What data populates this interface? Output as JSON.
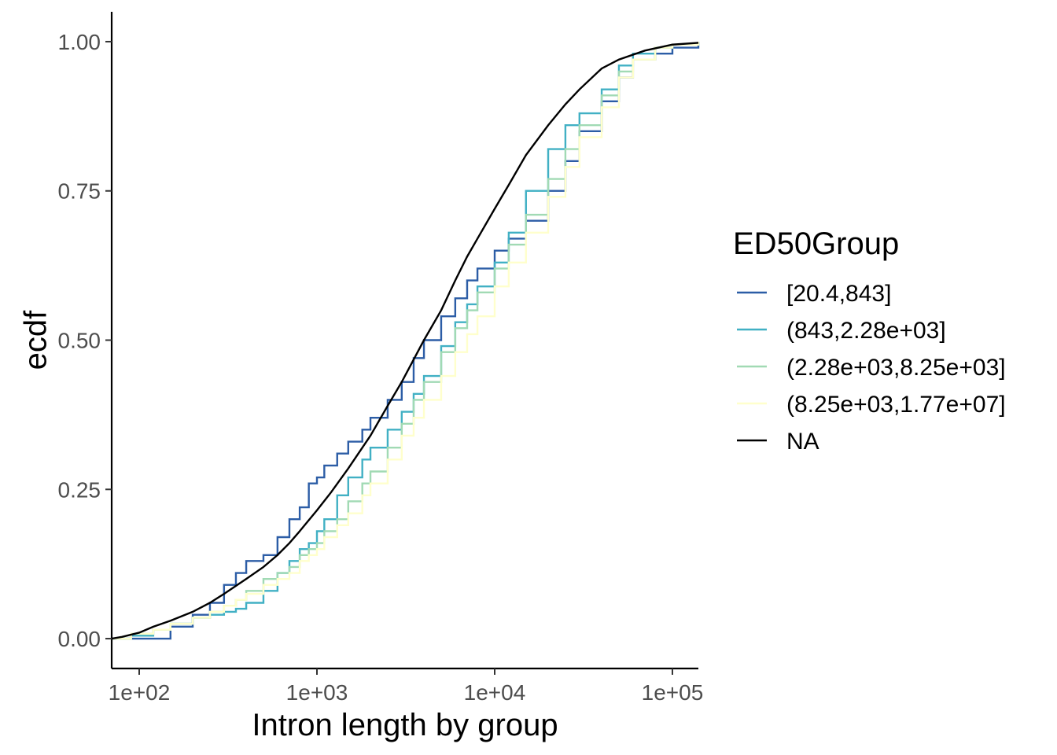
{
  "chart_data": {
    "type": "line",
    "xlabel": "Intron length by group",
    "ylabel": "ecdf",
    "x_scale": "log10",
    "xlim": [
      70,
      140000
    ],
    "ylim": [
      -0.05,
      1.05
    ],
    "x_ticks": [
      {
        "value": 100,
        "label": "1e+02"
      },
      {
        "value": 1000,
        "label": "1e+03"
      },
      {
        "value": 10000,
        "label": "1e+04"
      },
      {
        "value": 100000,
        "label": "1e+05"
      }
    ],
    "y_ticks": [
      {
        "value": 0.0,
        "label": "0.00"
      },
      {
        "value": 0.25,
        "label": "0.25"
      },
      {
        "value": 0.5,
        "label": "0.50"
      },
      {
        "value": 0.75,
        "label": "0.75"
      },
      {
        "value": 1.0,
        "label": "1.00"
      }
    ],
    "grid": false,
    "legend": {
      "title": "ED50Group",
      "position": "right"
    },
    "series": [
      {
        "name": "[20.4,843]",
        "color": "#2c5da6",
        "x": [
          70,
          90,
          120,
          150,
          200,
          250,
          300,
          350,
          400,
          500,
          600,
          700,
          800,
          900,
          1000,
          1100,
          1300,
          1500,
          1800,
          2000,
          2500,
          3000,
          3500,
          4000,
          5000,
          6000,
          7000,
          8000,
          10000,
          12000,
          15000,
          20000,
          25000,
          30000,
          40000,
          50000,
          60000,
          80000,
          100000,
          140000
        ],
        "y": [
          0.0,
          0.0,
          0.0,
          0.02,
          0.04,
          0.06,
          0.09,
          0.11,
          0.13,
          0.14,
          0.17,
          0.2,
          0.22,
          0.26,
          0.27,
          0.29,
          0.31,
          0.33,
          0.35,
          0.37,
          0.4,
          0.43,
          0.47,
          0.5,
          0.54,
          0.57,
          0.6,
          0.62,
          0.65,
          0.67,
          0.7,
          0.75,
          0.8,
          0.85,
          0.9,
          0.94,
          0.97,
          0.98,
          0.99,
          1.0
        ]
      },
      {
        "name": "(843,2.28e+03]",
        "color": "#41b0c4",
        "x": [
          70,
          90,
          120,
          150,
          200,
          250,
          300,
          350,
          400,
          500,
          600,
          700,
          800,
          900,
          1000,
          1100,
          1300,
          1500,
          1800,
          2000,
          2500,
          3000,
          3500,
          4000,
          5000,
          6000,
          7000,
          8000,
          10000,
          12000,
          15000,
          20000,
          25000,
          30000,
          40000,
          50000,
          60000,
          80000,
          100000,
          140000
        ],
        "y": [
          0.0,
          0.005,
          0.015,
          0.025,
          0.035,
          0.04,
          0.045,
          0.05,
          0.06,
          0.08,
          0.11,
          0.13,
          0.15,
          0.16,
          0.18,
          0.2,
          0.24,
          0.27,
          0.3,
          0.32,
          0.35,
          0.38,
          0.41,
          0.44,
          0.49,
          0.53,
          0.56,
          0.59,
          0.63,
          0.68,
          0.75,
          0.82,
          0.86,
          0.88,
          0.92,
          0.96,
          0.98,
          0.99,
          0.995,
          1.0
        ]
      },
      {
        "name": "(2.28e+03,8.25e+03]",
        "color": "#a1dab4",
        "x": [
          70,
          90,
          120,
          150,
          200,
          250,
          300,
          350,
          400,
          500,
          600,
          700,
          800,
          900,
          1000,
          1100,
          1300,
          1500,
          1800,
          2000,
          2500,
          3000,
          3500,
          4000,
          5000,
          6000,
          7000,
          8000,
          10000,
          12000,
          15000,
          20000,
          25000,
          30000,
          40000,
          50000,
          60000,
          80000,
          100000,
          140000
        ],
        "y": [
          0.0,
          0.008,
          0.015,
          0.025,
          0.035,
          0.045,
          0.055,
          0.065,
          0.08,
          0.1,
          0.11,
          0.12,
          0.14,
          0.15,
          0.16,
          0.18,
          0.2,
          0.23,
          0.26,
          0.28,
          0.32,
          0.36,
          0.4,
          0.43,
          0.48,
          0.52,
          0.55,
          0.58,
          0.62,
          0.66,
          0.71,
          0.77,
          0.82,
          0.86,
          0.91,
          0.95,
          0.97,
          0.99,
          0.995,
          1.0
        ]
      },
      {
        "name": "(8.25e+03,1.77e+07]",
        "color": "#ffffcc",
        "x": [
          70,
          90,
          120,
          150,
          200,
          250,
          300,
          350,
          400,
          500,
          600,
          700,
          800,
          900,
          1000,
          1100,
          1300,
          1500,
          1800,
          2000,
          2500,
          3000,
          3500,
          4000,
          5000,
          6000,
          7000,
          8000,
          10000,
          12000,
          15000,
          20000,
          25000,
          30000,
          40000,
          50000,
          60000,
          80000,
          100000,
          140000
        ],
        "y": [
          0.0,
          0.008,
          0.015,
          0.025,
          0.035,
          0.045,
          0.055,
          0.065,
          0.075,
          0.09,
          0.1,
          0.11,
          0.13,
          0.14,
          0.15,
          0.17,
          0.19,
          0.21,
          0.24,
          0.26,
          0.3,
          0.34,
          0.37,
          0.4,
          0.44,
          0.48,
          0.51,
          0.54,
          0.59,
          0.63,
          0.68,
          0.74,
          0.79,
          0.84,
          0.89,
          0.94,
          0.97,
          0.99,
          0.995,
          1.0
        ]
      },
      {
        "name": "NA",
        "color": "#000000",
        "x": [
          70,
          80,
          100,
          120,
          150,
          200,
          250,
          300,
          400,
          500,
          600,
          700,
          800,
          1000,
          1200,
          1500,
          2000,
          2500,
          3000,
          4000,
          5000,
          6000,
          7000,
          8000,
          10000,
          12000,
          15000,
          20000,
          25000,
          30000,
          40000,
          50000,
          70000,
          100000,
          140000
        ],
        "y": [
          0.0,
          0.003,
          0.01,
          0.02,
          0.03,
          0.045,
          0.06,
          0.075,
          0.1,
          0.12,
          0.14,
          0.16,
          0.18,
          0.215,
          0.245,
          0.285,
          0.34,
          0.39,
          0.43,
          0.5,
          0.55,
          0.6,
          0.64,
          0.67,
          0.72,
          0.76,
          0.81,
          0.86,
          0.895,
          0.92,
          0.955,
          0.97,
          0.985,
          0.995,
          0.998
        ]
      }
    ]
  }
}
